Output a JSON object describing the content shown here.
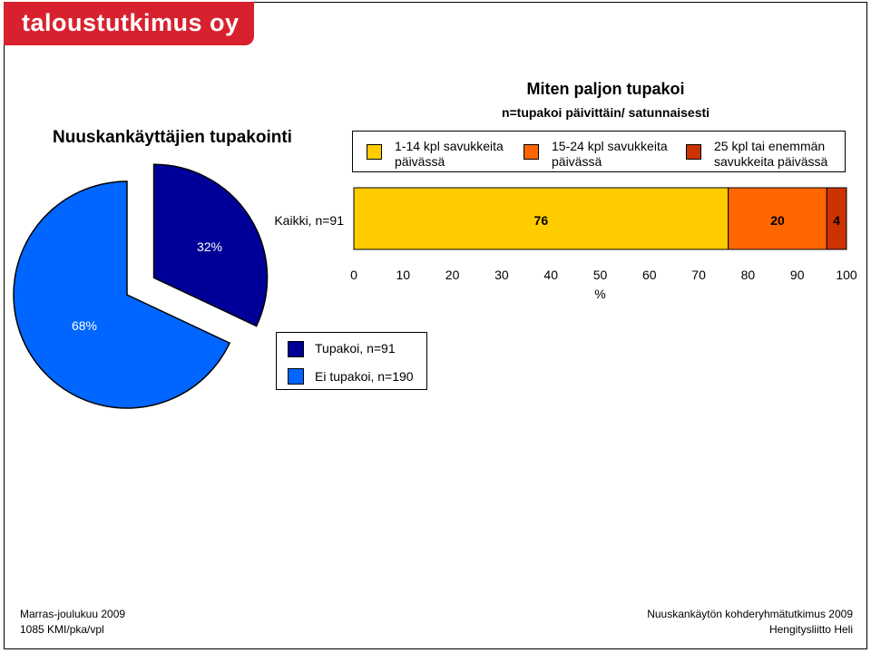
{
  "logo": {
    "text": "taloustutkimus oy",
    "color": "#d8212f"
  },
  "left_title": "Nuuskankäyttäjien tupakointi",
  "right_title": "Miten paljon tupakoi",
  "right_subtitle": "n=tupakoi päivittäin/ satunnaisesti",
  "bar_legend": [
    {
      "line1": "1-14 kpl savukkeita",
      "line2": "päivässä",
      "color": "#ffcc00"
    },
    {
      "line1": "15-24 kpl savukkeita",
      "line2": "päivässä",
      "color": "#ff6600"
    },
    {
      "line1": "25 kpl tai enemmän",
      "line2": "savukkeita päivässä",
      "color": "#cc3300"
    }
  ],
  "pie_legend": [
    {
      "label": "Tupakoi, n=91",
      "color": "#000099"
    },
    {
      "label": "Ei tupakoi, n=190",
      "color": "#0066ff"
    }
  ],
  "footer": {
    "left_line1": "Marras-joulukuu 2009",
    "left_line2": "1085 KMI/pka/vpl",
    "right_line1": "Nuuskankäytön kohderyhmätutkimus 2009",
    "right_line2": "Hengitysliitto Heli"
  },
  "chart_data": [
    {
      "type": "pie",
      "title": "Nuuskankäyttäjien tupakointi",
      "slices": [
        {
          "label": "Tupakoi, n=91",
          "value": 32,
          "value_label": "32%",
          "color": "#000099",
          "exploded": true
        },
        {
          "label": "Ei tupakoi, n=190",
          "value": 68,
          "value_label": "68%",
          "color": "#0066ff",
          "exploded": false
        }
      ]
    },
    {
      "type": "bar",
      "orientation": "horizontal",
      "stacked": true,
      "title": "Miten paljon tupakoi",
      "subtitle": "n=tupakoi päivittäin/ satunnaisesti",
      "categories": [
        "Kaikki, n=91"
      ],
      "series": [
        {
          "name": "1-14 kpl savukkeita päivässä",
          "values": [
            76
          ],
          "color": "#ffcc00"
        },
        {
          "name": "15-24 kpl savukkeita päivässä",
          "values": [
            20
          ],
          "color": "#ff6600"
        },
        {
          "name": "25 kpl tai enemmän savukkeita päivässä",
          "values": [
            4
          ],
          "color": "#cc3300"
        }
      ],
      "xlabel": "%",
      "xlim": [
        0,
        100
      ],
      "xticks": [
        0,
        10,
        20,
        30,
        40,
        50,
        60,
        70,
        80,
        90,
        100
      ],
      "grid": false,
      "legend": "top"
    }
  ]
}
